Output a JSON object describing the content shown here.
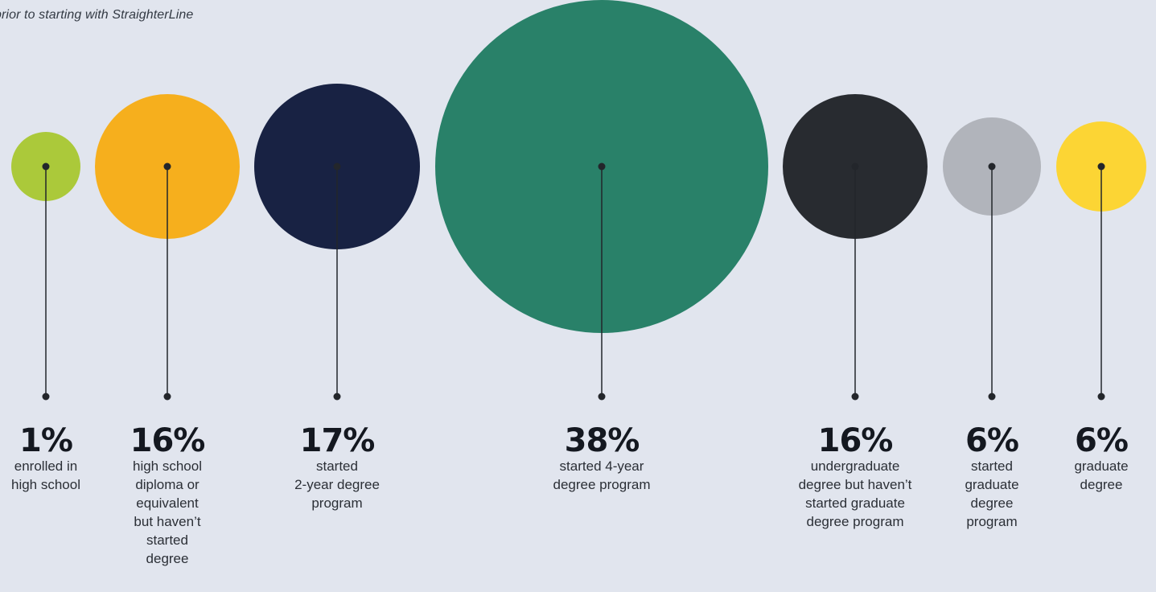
{
  "subtitle": "prior to starting with StraighterLine",
  "chart_data": {
    "type": "bubble",
    "title": "",
    "subtitle": "prior to starting with StraighterLine",
    "unit": "%",
    "categories": [
      "enrolled in high school",
      "high school diploma or equivalent but haven’t started degree",
      "started 2-year degree program",
      "started 4-year degree program",
      "undergraduate degree but haven’t started graduate degree program",
      "started graduate degree program",
      "graduate degree"
    ],
    "values": [
      1,
      16,
      17,
      38,
      16,
      6,
      6
    ],
    "labels": [
      {
        "pct": "1%",
        "lines": [
          "enrolled in",
          "high school"
        ]
      },
      {
        "pct": "16%",
        "lines": [
          "high school",
          "diploma or",
          "equivalent",
          "but haven’t",
          "started",
          "degree"
        ]
      },
      {
        "pct": "17%",
        "lines": [
          "started",
          "2-year degree",
          "program"
        ]
      },
      {
        "pct": "38%",
        "lines": [
          "started 4-year",
          "degree program"
        ]
      },
      {
        "pct": "16%",
        "lines": [
          "undergraduate",
          "degree but haven’t",
          "started graduate",
          "degree program"
        ]
      },
      {
        "pct": "6%",
        "lines": [
          "started",
          "graduate",
          "degree",
          "program"
        ]
      },
      {
        "pct": "6%",
        "lines": [
          "graduate",
          "degree"
        ]
      }
    ],
    "colors": [
      "#abc93a",
      "#f6af1d",
      "#182243",
      "#298169",
      "#282b30",
      "#b1b4bb",
      "#fcd534"
    ]
  }
}
